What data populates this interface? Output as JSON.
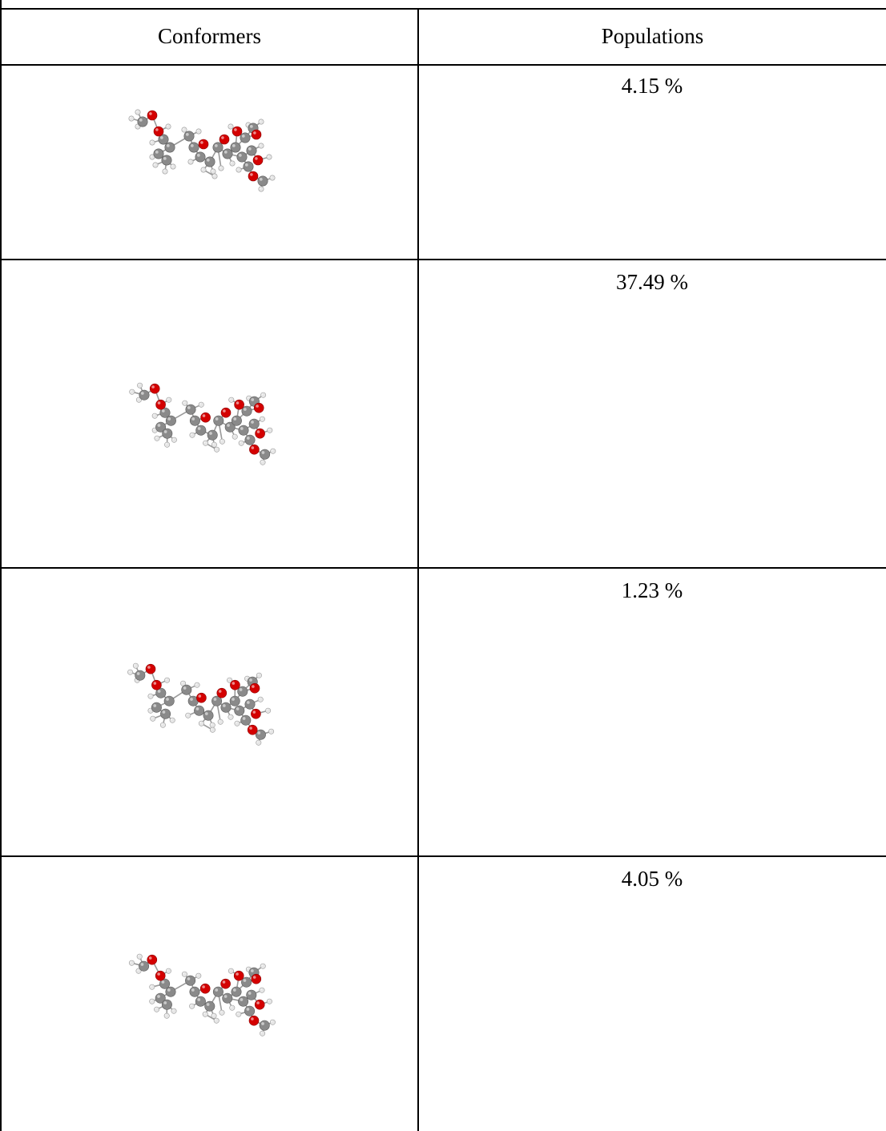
{
  "table": {
    "headers": [
      "Conformers",
      "Populations"
    ],
    "rows": [
      {
        "population": "4.15 %",
        "structure": "conformer-1-molecule"
      },
      {
        "population": "37.49 %",
        "structure": "conformer-2-molecule"
      },
      {
        "population": "1.23 %",
        "structure": "conformer-3-molecule"
      },
      {
        "population": "4.05 %",
        "structure": "conformer-4-molecule"
      }
    ]
  },
  "colors": {
    "oxygen": "#d40000",
    "carbon": "#8a8a8a",
    "hydrogen": "#e6e6e6",
    "bond": "#9a9a9a",
    "line": "#000000"
  }
}
